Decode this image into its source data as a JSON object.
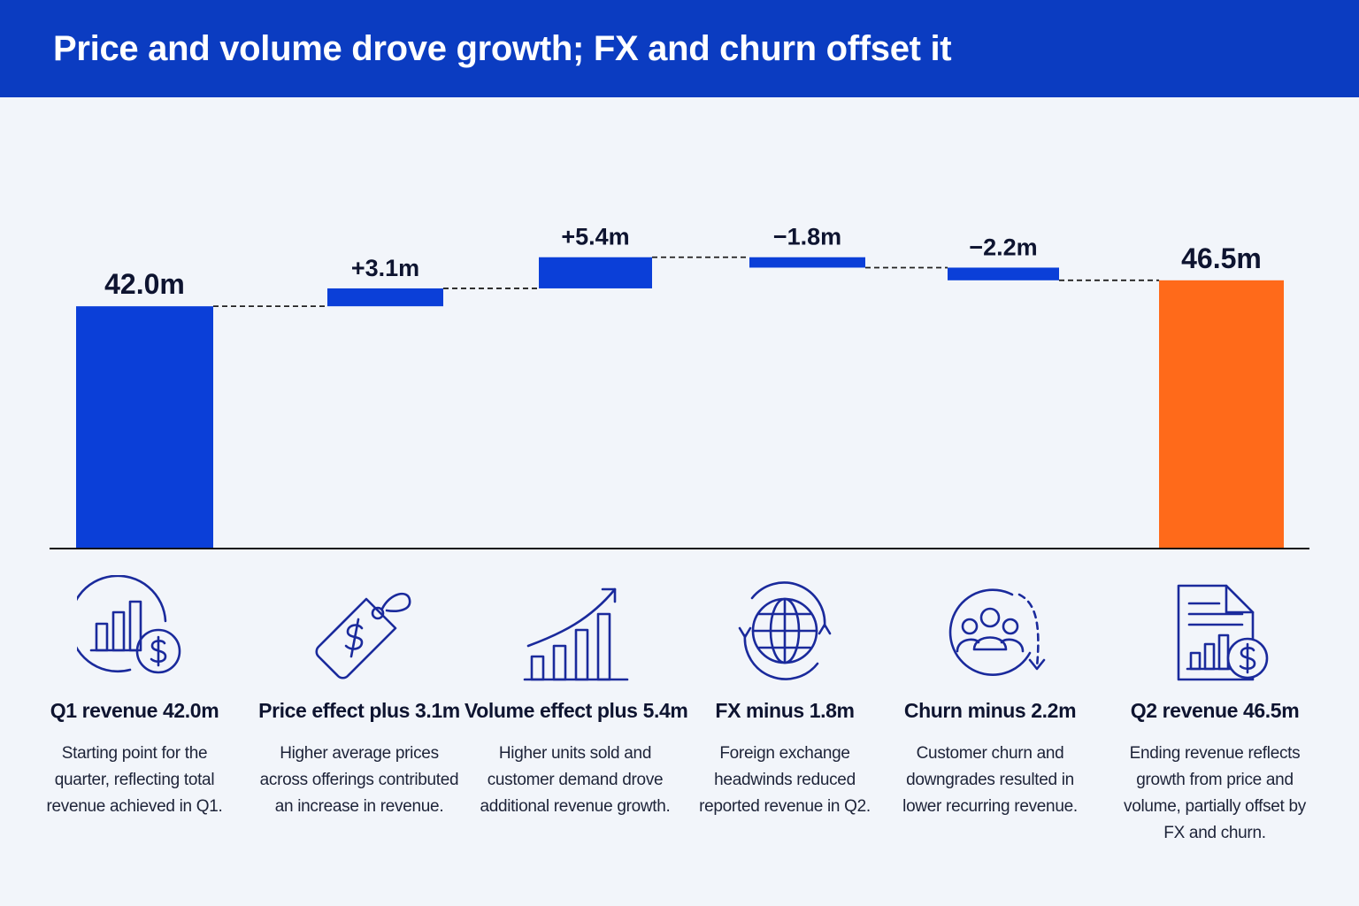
{
  "title": "Price and volume drove growth; FX and churn offset it",
  "colors": {
    "header": "#0b3cc1",
    "increase": "#0b3fd8",
    "total_start": "#0b3fd8",
    "total_end": "#ff6a1a",
    "icon_stroke": "#1a2a9c",
    "axis": "#111111"
  },
  "chart_data": {
    "type": "bar",
    "subtype": "waterfall",
    "categories": [
      "Q1 revenue",
      "Price effect",
      "Volume effect",
      "FX",
      "Churn",
      "Q2 revenue"
    ],
    "values": [
      42.0,
      3.1,
      5.4,
      -1.8,
      -2.2,
      46.5
    ],
    "measure": [
      "total",
      "relative",
      "relative",
      "relative",
      "relative",
      "total"
    ],
    "data_labels": [
      "42.0m",
      "+3.1m",
      "+5.4m",
      "−1.8m",
      "−2.2m",
      "46.5m"
    ],
    "unit": "m",
    "connectors": "dashed",
    "grid": false
  },
  "cards": [
    {
      "icon": "bar-chart-dollar-icon",
      "title": "Q1 revenue 42.0m",
      "desc": "Starting point for the quarter, reflecting total revenue achieved in Q1."
    },
    {
      "icon": "price-tag-icon",
      "title": "Price effect plus 3.1m",
      "desc": "Higher average prices across offerings contributed an increase in revenue."
    },
    {
      "icon": "growth-chart-icon",
      "title": "Volume effect plus 5.4m",
      "desc": "Higher units sold and customer demand drove additional revenue growth."
    },
    {
      "icon": "globe-exchange-icon",
      "title": "FX minus 1.8m",
      "desc": "Foreign exchange headwinds reduced reported revenue in Q2."
    },
    {
      "icon": "users-churn-icon",
      "title": "Churn minus 2.2m",
      "desc": "Customer churn and downgrades resulted in lower recurring revenue."
    },
    {
      "icon": "report-dollar-icon",
      "title": "Q2 revenue 46.5m",
      "desc": "Ending revenue reflects growth from price and volume, partially offset by FX and churn."
    }
  ]
}
